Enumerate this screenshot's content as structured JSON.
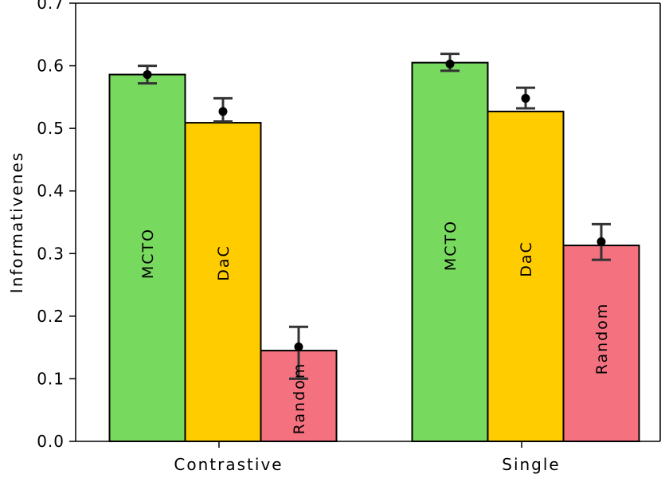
{
  "chart_data": {
    "type": "bar",
    "ylabel": "Informativenes",
    "ylim": [
      0,
      0.7
    ],
    "yticks": [
      "0.0",
      "0.1",
      "0.2",
      "0.3",
      "0.4",
      "0.5",
      "0.6",
      "0.7"
    ],
    "categories": [
      "Contrastive",
      "Single"
    ],
    "series": [
      {
        "name": "MCTO",
        "color": "#77d95e",
        "values": [
          0.586,
          0.605
        ],
        "means": [
          0.586,
          0.603
        ],
        "err_low": [
          0.572,
          0.592
        ],
        "err_high": [
          0.6,
          0.619
        ]
      },
      {
        "name": "DaC",
        "color": "#ffcc00",
        "values": [
          0.509,
          0.527
        ],
        "means": [
          0.527,
          0.548
        ],
        "err_low": [
          0.511,
          0.532
        ],
        "err_high": [
          0.548,
          0.565
        ]
      },
      {
        "name": "Random",
        "color": "#f47280",
        "values": [
          0.145,
          0.313
        ],
        "means": [
          0.151,
          0.319
        ],
        "err_low": [
          0.1,
          0.29
        ],
        "err_high": [
          0.183,
          0.347
        ]
      }
    ]
  }
}
